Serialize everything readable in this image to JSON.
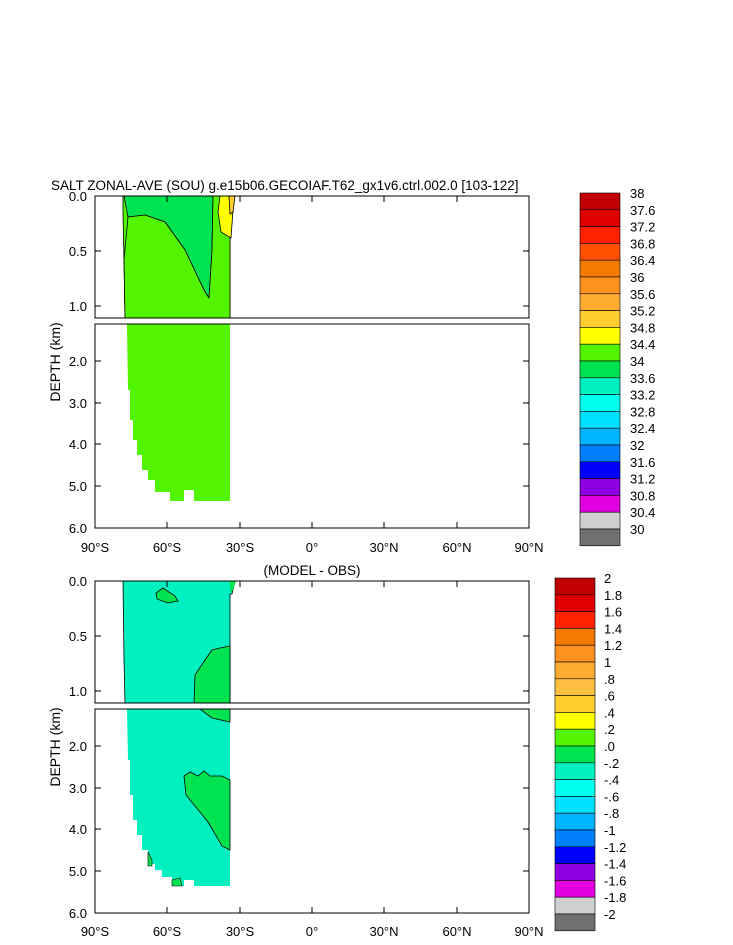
{
  "chart_data": [
    {
      "type": "contour",
      "title": "SALT ZONAL-AVE (SOU) g.e15b06.GECOIAF.T62_gx1v6.ctrl.002.0 [103-122]",
      "ylabel": "DEPTH (km)",
      "xlim": [
        -90,
        90
      ],
      "ylim": [
        0,
        6.0
      ],
      "panel_split_depth": 1.1,
      "yticks_upper": [
        "0.0",
        "0.5",
        "1.0"
      ],
      "yticks_lower": [
        "2.0",
        "3.0",
        "4.0",
        "5.0",
        "6.0"
      ],
      "xticks": [
        "90°S",
        "60°S",
        "30°S",
        "0°",
        "30°N",
        "60°N",
        "90°N"
      ],
      "colorbar_labels": [
        "38",
        "37.6",
        "37.2",
        "36.8",
        "36.4",
        "36",
        "35.6",
        "35.2",
        "34.8",
        "34.4",
        "34",
        "33.6",
        "33.2",
        "32.8",
        "32.4",
        "32",
        "31.6",
        "31.2",
        "30.8",
        "30.4",
        "30"
      ],
      "colorbar_colors": [
        "#c00000",
        "#e00000",
        "#ff2000",
        "#ff5000",
        "#f47a00",
        "#ff9120",
        "#ffad30",
        "#ffcf30",
        "#ffff00",
        "#52f400",
        "#00e350",
        "#00f0c0",
        "#00ffee",
        "#00e0ff",
        "#00b4ff",
        "#0080ff",
        "#0000ff",
        "#8f00e0",
        "#e000e0",
        "#d0d0d0",
        "#707070"
      ],
      "regions": [
        {
          "value_range": "34.4-34.8",
          "color": "#52f400",
          "extent": "78°S to 34°S, surface to 5.35 km"
        },
        {
          "value_range": "34.8-35.2",
          "color": "#ffff00",
          "extent": "near 34°S, surface to 0.45 km"
        },
        {
          "value_range": "34.0-34.4",
          "color": "#00e350",
          "extent": "near 34°S, upper 0.15 km"
        },
        {
          "value_range": "33.6-34.0",
          "color": "#00f0c0",
          "extent": "near 60°S, surface"
        }
      ]
    },
    {
      "type": "contour",
      "title": "(MODEL - OBS)",
      "ylabel": "DEPTH (km)",
      "xlim": [
        -90,
        90
      ],
      "ylim": [
        0,
        6.0
      ],
      "panel_split_depth": 1.1,
      "yticks_upper": [
        "0.0",
        "0.5",
        "1.0"
      ],
      "yticks_lower": [
        "2.0",
        "3.0",
        "4.0",
        "5.0",
        "6.0"
      ],
      "xticks": [
        "90°S",
        "60°S",
        "30°S",
        "0°",
        "30°N",
        "60°N",
        "90°N"
      ],
      "colorbar_labels": [
        "2",
        "1.8",
        "1.6",
        "1.4",
        "1.2",
        "1",
        ".8",
        ".6",
        ".4",
        ".2",
        ".0",
        "-.2",
        "-.4",
        "-.6",
        "-.8",
        "-1",
        "-1.2",
        "-1.4",
        "-1.6",
        "-1.8",
        "-2"
      ],
      "colorbar_colors": [
        "#c00000",
        "#e00000",
        "#ff2000",
        "#f47a00",
        "#ff9120",
        "#ffad30",
        "#ffbf40",
        "#ffd030",
        "#ffff00",
        "#52f400",
        "#00e350",
        "#00f0c0",
        "#00ffee",
        "#00e0ff",
        "#00b4ff",
        "#0080ff",
        "#0000ff",
        "#8f00e0",
        "#e000e0",
        "#d0d0d0",
        "#707070"
      ],
      "regions": [
        {
          "value_range": "-0.2-0.0",
          "color": "#00f0c0",
          "extent": "78°S to 34°S, surface to 5.35 km"
        },
        {
          "value_range": "0.0-0.2",
          "color": "#00e350",
          "extent": "47°S to 34°S, 0.2 km to 1.4 km"
        },
        {
          "value_range": "0.0-0.2",
          "color": "#00e350",
          "extent": "52°S to 34°S, 2.6 km to 4.5 km"
        },
        {
          "value_range": "0.0-0.2",
          "color": "#00e350",
          "extent": "near 59°S, 0.1 km"
        }
      ]
    }
  ]
}
